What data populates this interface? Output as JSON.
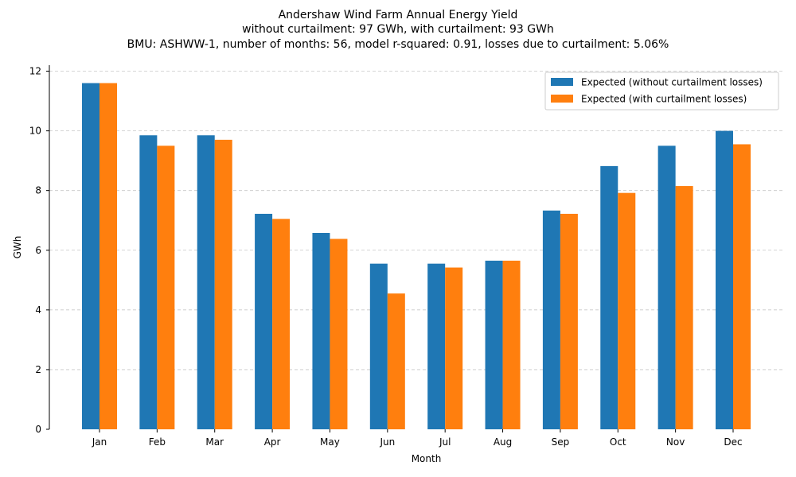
{
  "chart_data": {
    "type": "bar",
    "title_lines": [
      "Andershaw Wind Farm Annual Energy Yield",
      "without curtailment: 97 GWh, with curtailment: 93 GWh",
      "BMU: ASHWW-1, number of months: 56, model r-squared: 0.91, losses due to curtailment: 5.06%"
    ],
    "xlabel": "Month",
    "ylabel": "GWh",
    "ylim": [
      0,
      12.2
    ],
    "yticks": [
      0,
      2,
      4,
      6,
      8,
      10,
      12
    ],
    "grid": "y-dashed",
    "legend_position": "top-right",
    "categories": [
      "Jan",
      "Feb",
      "Mar",
      "Apr",
      "May",
      "Jun",
      "Jul",
      "Aug",
      "Sep",
      "Oct",
      "Nov",
      "Dec"
    ],
    "series": [
      {
        "name": "Expected (without curtailment losses)",
        "color": "#1f77b4",
        "values": [
          11.6,
          9.85,
          9.85,
          7.22,
          6.58,
          5.55,
          5.55,
          5.65,
          7.33,
          8.82,
          9.5,
          10.0
        ]
      },
      {
        "name": "Expected (with curtailment losses)",
        "color": "#ff7f0e",
        "values": [
          11.6,
          9.5,
          9.7,
          7.05,
          6.38,
          4.55,
          5.42,
          5.65,
          7.22,
          7.92,
          8.15,
          9.55
        ]
      }
    ]
  }
}
